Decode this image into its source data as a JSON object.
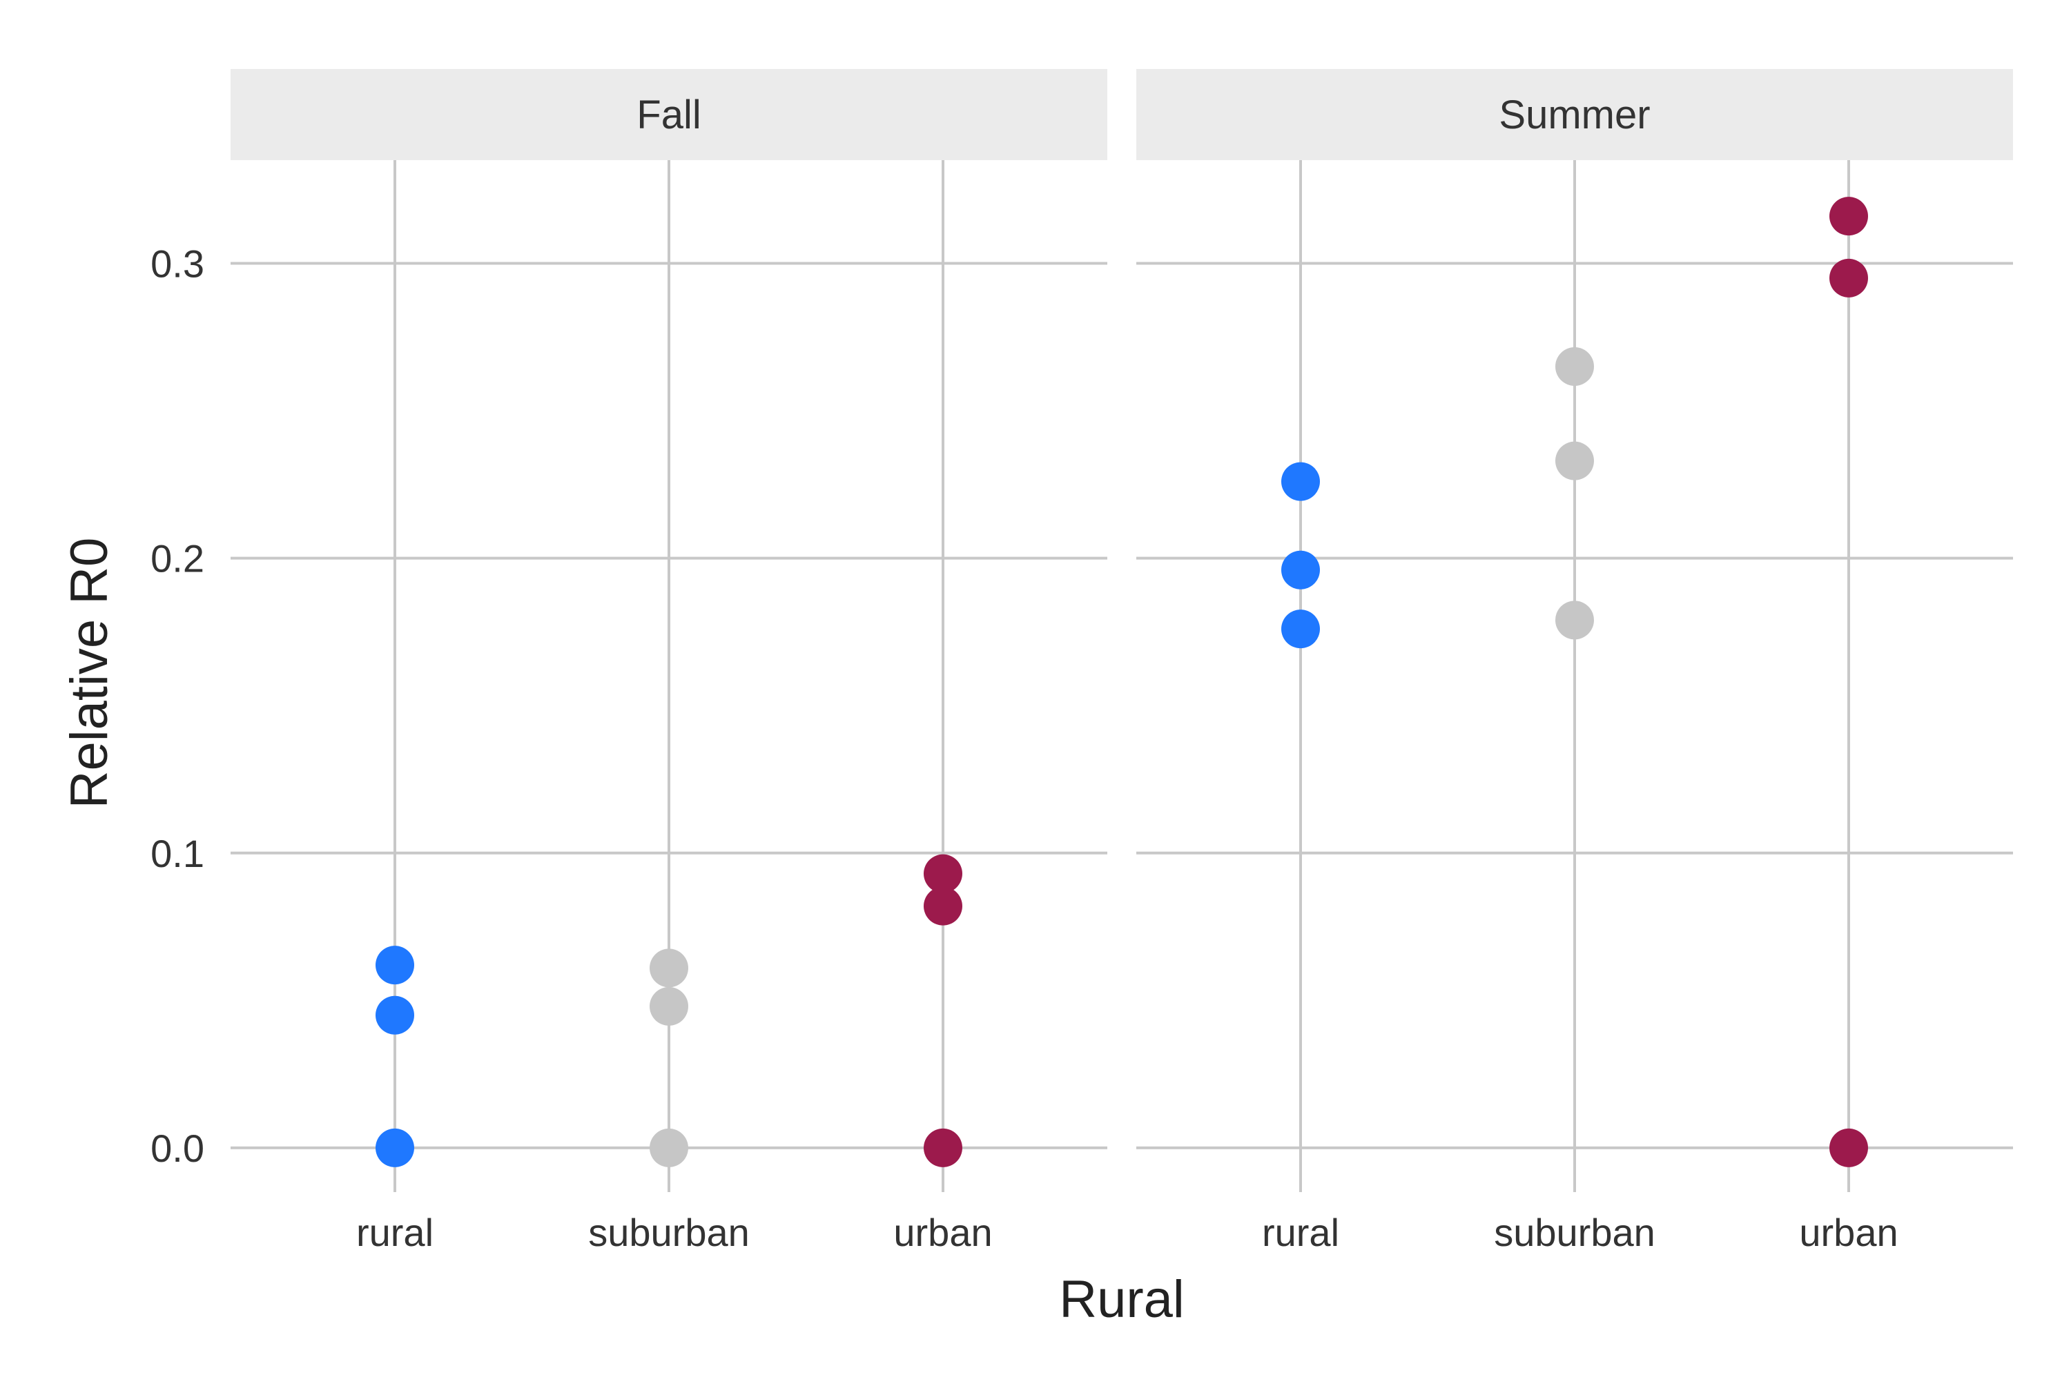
{
  "chart_data": {
    "type": "scatter",
    "facets": [
      "Fall",
      "Summer"
    ],
    "categories": [
      "rural",
      "suburban",
      "urban"
    ],
    "xlabel": "Rural",
    "ylabel": "Relative R0",
    "ylim": [
      -0.015,
      0.335
    ],
    "yticks": [
      0.0,
      0.1,
      0.2,
      0.3
    ],
    "ytick_labels": [
      "0.0",
      "0.1",
      "0.2",
      "0.3"
    ],
    "grid": true,
    "colors": {
      "rural": "#1f78ff",
      "suburban": "#c6c6c6",
      "urban": "#9c1a4c"
    },
    "points": [
      {
        "facet": "Fall",
        "category": "rural",
        "y": 0.062
      },
      {
        "facet": "Fall",
        "category": "rural",
        "y": 0.045
      },
      {
        "facet": "Fall",
        "category": "rural",
        "y": 0.0
      },
      {
        "facet": "Fall",
        "category": "suburban",
        "y": 0.061
      },
      {
        "facet": "Fall",
        "category": "suburban",
        "y": 0.048
      },
      {
        "facet": "Fall",
        "category": "suburban",
        "y": 0.0
      },
      {
        "facet": "Fall",
        "category": "urban",
        "y": 0.093
      },
      {
        "facet": "Fall",
        "category": "urban",
        "y": 0.082
      },
      {
        "facet": "Fall",
        "category": "urban",
        "y": 0.0
      },
      {
        "facet": "Summer",
        "category": "rural",
        "y": 0.226
      },
      {
        "facet": "Summer",
        "category": "rural",
        "y": 0.196
      },
      {
        "facet": "Summer",
        "category": "rural",
        "y": 0.176
      },
      {
        "facet": "Summer",
        "category": "suburban",
        "y": 0.265
      },
      {
        "facet": "Summer",
        "category": "suburban",
        "y": 0.233
      },
      {
        "facet": "Summer",
        "category": "suburban",
        "y": 0.179
      },
      {
        "facet": "Summer",
        "category": "urban",
        "y": 0.316
      },
      {
        "facet": "Summer",
        "category": "urban",
        "y": 0.295
      },
      {
        "facet": "Summer",
        "category": "urban",
        "y": 0.0
      }
    ]
  }
}
